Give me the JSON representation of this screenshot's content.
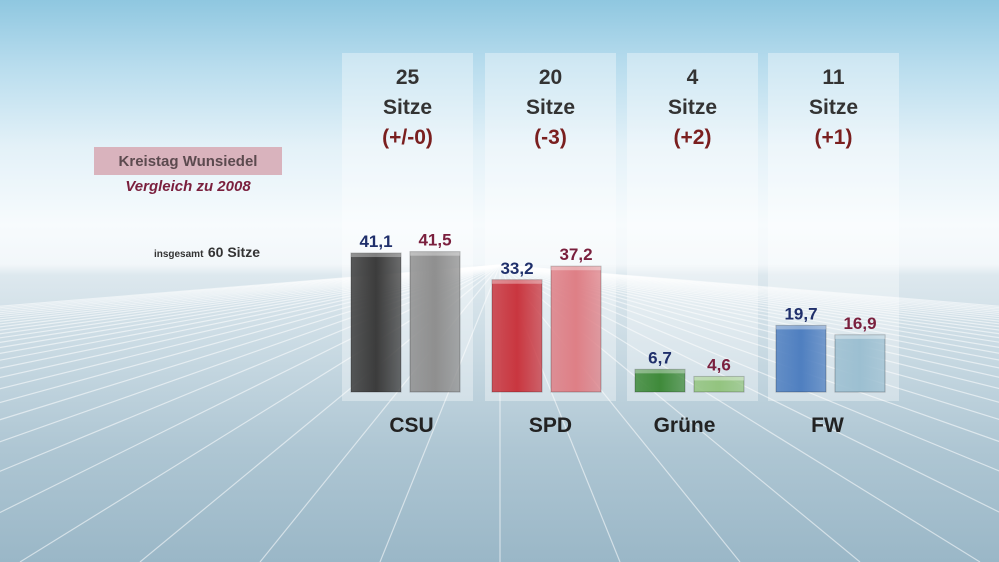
{
  "header": {
    "title": "Kreistag Wunsiedel",
    "subtitle": "Vergleich zu 2008",
    "total_prefix": "insgesamt",
    "total_value": "60 Sitze"
  },
  "parties": [
    {
      "name": "CSU",
      "seats": "25",
      "seats_word": "Sitze",
      "change": "(+/-0)"
    },
    {
      "name": "SPD",
      "seats": "20",
      "seats_word": "Sitze",
      "change": "(-3)"
    },
    {
      "name": "Grüne",
      "seats": "4",
      "seats_word": "Sitze",
      "change": "(+2)"
    },
    {
      "name": "FW",
      "seats": "11",
      "seats_word": "Sitze",
      "change": "(+1)"
    }
  ],
  "colors": {
    "current_label": "#1f2f6b",
    "previous_label": "#7a1f3d",
    "change_text": "#7a1f1f"
  },
  "chart_data": {
    "type": "bar",
    "categories": [
      "CSU",
      "SPD",
      "Grüne",
      "FW"
    ],
    "series": [
      {
        "values": [
          41.1,
          33.2,
          6.7,
          19.7
        ],
        "labels": [
          "41,1",
          "33,2",
          "6,7",
          "19,7"
        ],
        "colors": [
          "#3c3c3c",
          "#c9363f",
          "#3f8a3a",
          "#4f7fc0"
        ]
      },
      {
        "values": [
          41.5,
          37.2,
          4.6,
          16.9
        ],
        "labels": [
          "41,5",
          "37,2",
          "4,6",
          "16,9"
        ],
        "colors": [
          "#8f8f8f",
          "#de7f86",
          "#93c47f",
          "#9cbfd1"
        ]
      }
    ],
    "title": "Kreistag Wunsiedel",
    "subtitle": "Vergleich zu 2008",
    "xlabel": "",
    "ylabel": "",
    "ylim": [
      0,
      42
    ]
  }
}
